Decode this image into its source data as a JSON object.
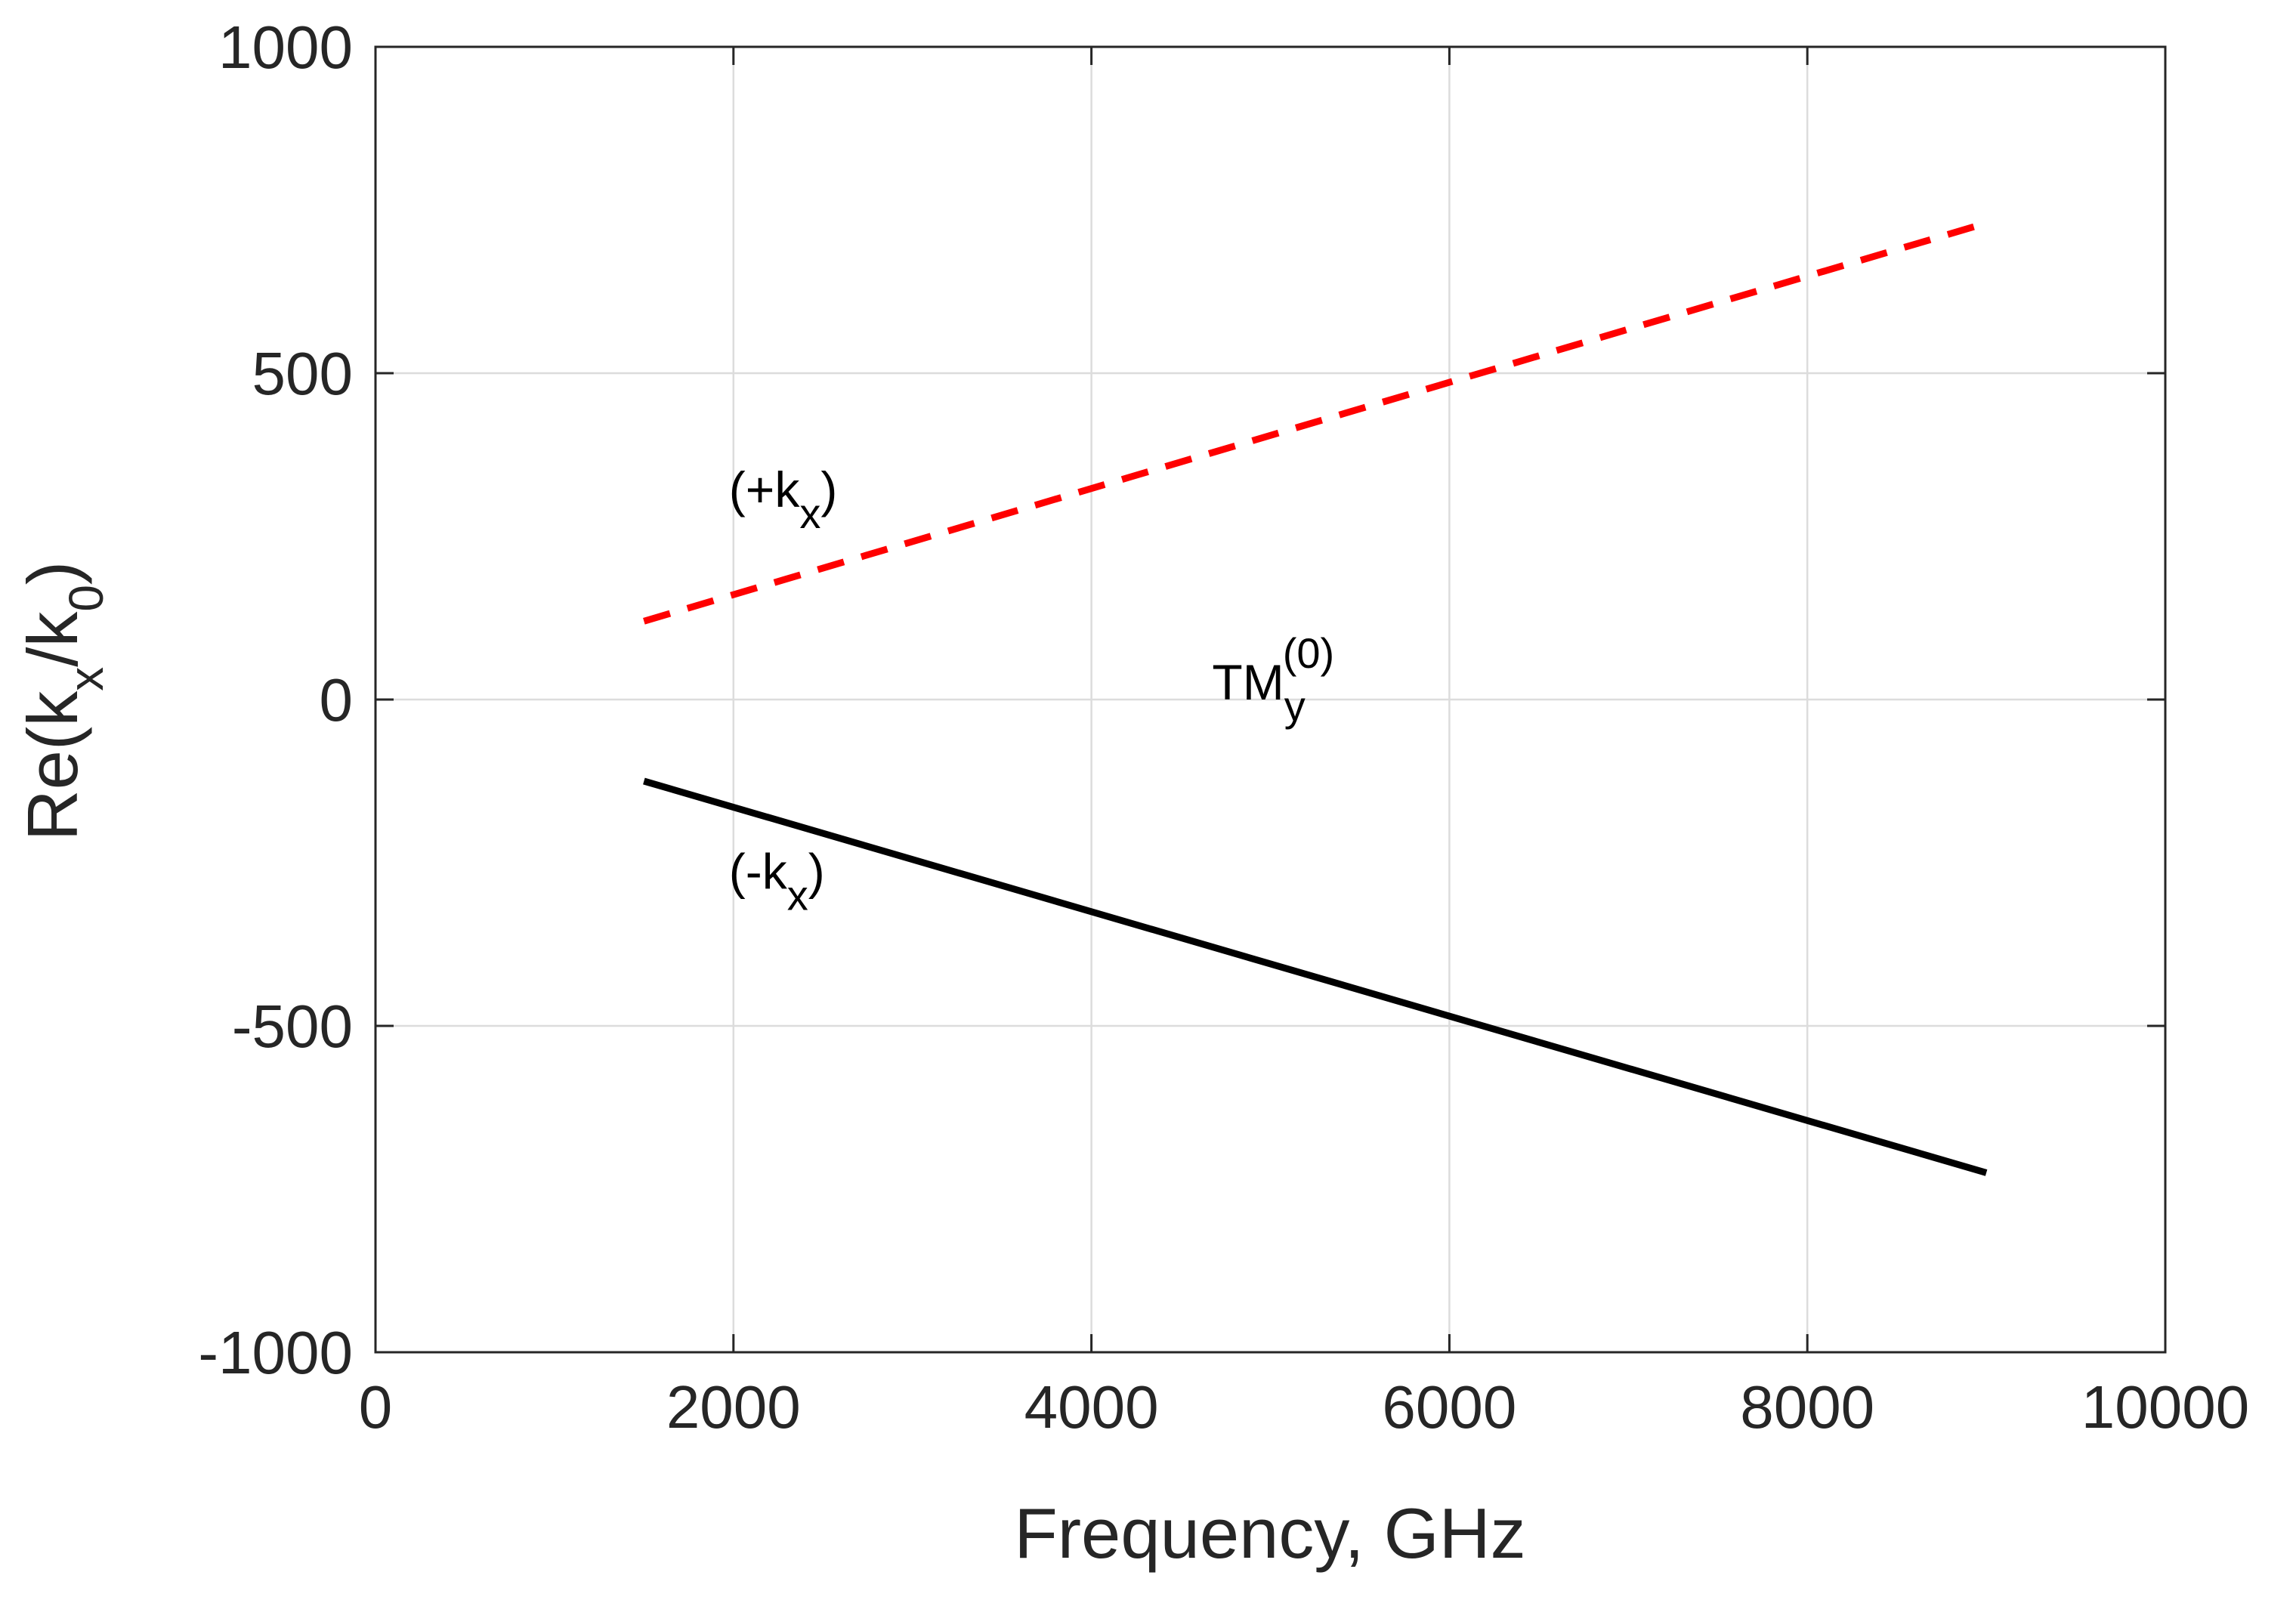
{
  "chart_data": {
    "type": "line",
    "title": "",
    "xlabel": "Frequency, GHz",
    "ylabel": {
      "base": "Re(k",
      "sub1": "x",
      "mid": "/k",
      "sub2": "0",
      "close": ")"
    },
    "xlim": [
      0,
      10000
    ],
    "ylim": [
      -1000,
      1000
    ],
    "xticks": [
      0,
      2000,
      4000,
      6000,
      8000,
      10000
    ],
    "xtick_labels": [
      "0",
      "2000",
      "4000",
      "6000",
      "8000",
      "10000"
    ],
    "yticks": [
      1000,
      500,
      0,
      -500,
      -1000
    ],
    "ytick_labels": [
      "1000",
      "500",
      "0",
      "-500",
      "-1000"
    ],
    "grid": true,
    "series": [
      {
        "name": "+kx",
        "style": "dashed",
        "color": "#ff0000",
        "x": [
          1500,
          9000
        ],
        "y": [
          120,
          730
        ]
      },
      {
        "name": "-kx",
        "style": "solid",
        "color": "#000000",
        "x": [
          1500,
          9000
        ],
        "y": [
          -125,
          -725
        ]
      }
    ],
    "annotations": [
      {
        "id": "plus",
        "x": 2000,
        "y": 295,
        "base": "(+k",
        "sub": "x",
        "close": ")"
      },
      {
        "id": "minus",
        "x": 2000,
        "y": -290,
        "base": "(-k",
        "sub": "x",
        "close": ")"
      },
      {
        "id": "mode",
        "x": 4700,
        "y": 0,
        "base": "TM",
        "sub": "y",
        "sup": "(0)"
      }
    ]
  }
}
